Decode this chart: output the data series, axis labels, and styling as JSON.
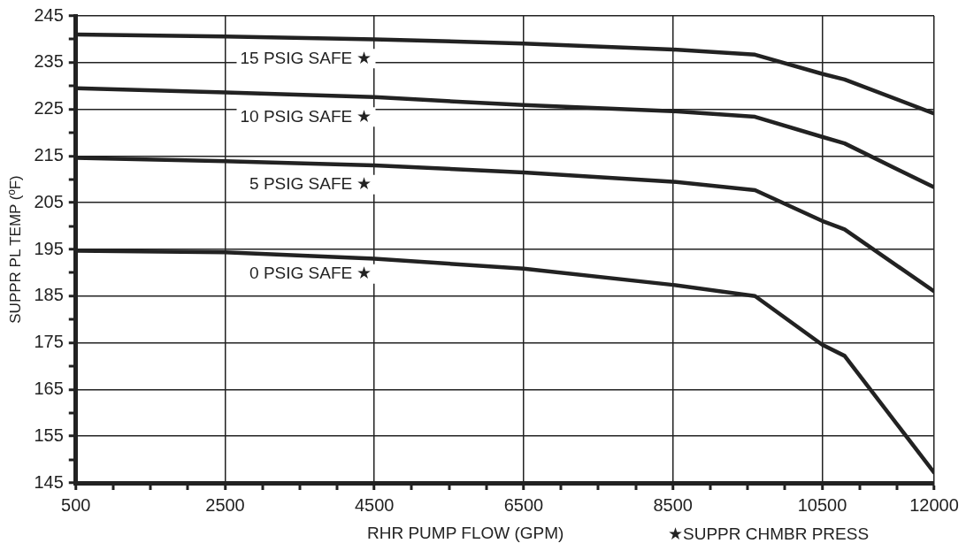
{
  "chart_data": {
    "type": "line",
    "xlabel": "RHR PUMP FLOW (GPM)",
    "ylabel": "SUPPR PL TEMP (ºF)",
    "annotations": [
      "★SUPPR CHMBR PRESS"
    ],
    "x": [
      500,
      2500,
      4500,
      6500,
      8500,
      9600,
      10500,
      10800,
      12000
    ],
    "series": [
      {
        "name": "15 PSIG SAFE ★",
        "color": "#222222",
        "values": [
          241,
          240.6,
          240,
          239.1,
          237.8,
          236.7,
          232.6,
          231.4,
          224.1
        ]
      },
      {
        "name": "10 PSIG SAFE ★",
        "color": "#222222",
        "values": [
          229.5,
          228.6,
          227.6,
          225.9,
          224.6,
          223.4,
          219.1,
          217.7,
          208.3
        ]
      },
      {
        "name": "5 PSIG SAFE ★",
        "color": "#222222",
        "values": [
          214.6,
          213.9,
          213,
          211.5,
          209.5,
          207.7,
          201.1,
          199.3,
          186
        ]
      },
      {
        "name": "0 PSIG SAFE ★",
        "color": "#222222",
        "values": [
          194.7,
          194.4,
          193,
          190.9,
          187.4,
          185,
          174.6,
          172.2,
          147.2
        ]
      }
    ],
    "xlim": [
      500,
      12000
    ],
    "xticks": [
      500,
      {
        "value": 1000,
        "label": null
      },
      {
        "value": 1500,
        "label": null
      },
      {
        "value": 2000,
        "label": null
      },
      2500,
      {
        "value": 3000,
        "label": null
      },
      {
        "value": 3500,
        "label": null
      },
      {
        "value": 4000,
        "label": null
      },
      4500,
      {
        "value": 5000,
        "label": null
      },
      {
        "value": 5500,
        "label": null
      },
      {
        "value": 6000,
        "label": null
      },
      6500,
      {
        "value": 7000,
        "label": null
      },
      {
        "value": 7500,
        "label": null
      },
      {
        "value": 8000,
        "label": null
      },
      8500,
      {
        "value": 9000,
        "label": null
      },
      {
        "value": 9500,
        "label": null
      },
      {
        "value": 10000,
        "label": null
      },
      10500,
      {
        "value": 11000,
        "label": null
      },
      {
        "value": 11500,
        "label": null
      },
      12000
    ],
    "ylim": [
      145,
      245
    ],
    "yticks": [
      145,
      {
        "value": 150,
        "label": null
      },
      155,
      {
        "value": 160,
        "label": null
      },
      165,
      {
        "value": 170,
        "label": null
      },
      175,
      {
        "value": 180,
        "label": null
      },
      185,
      {
        "value": 190,
        "label": null
      },
      195,
      {
        "value": 200,
        "label": null
      },
      205,
      {
        "value": 210,
        "label": null
      },
      215,
      {
        "value": 220,
        "label": null
      },
      225,
      {
        "value": 230,
        "label": null
      },
      235,
      {
        "value": 240,
        "label": null
      },
      245
    ],
    "grid": true,
    "legend": false,
    "marker": "none",
    "line_style": "solid"
  }
}
